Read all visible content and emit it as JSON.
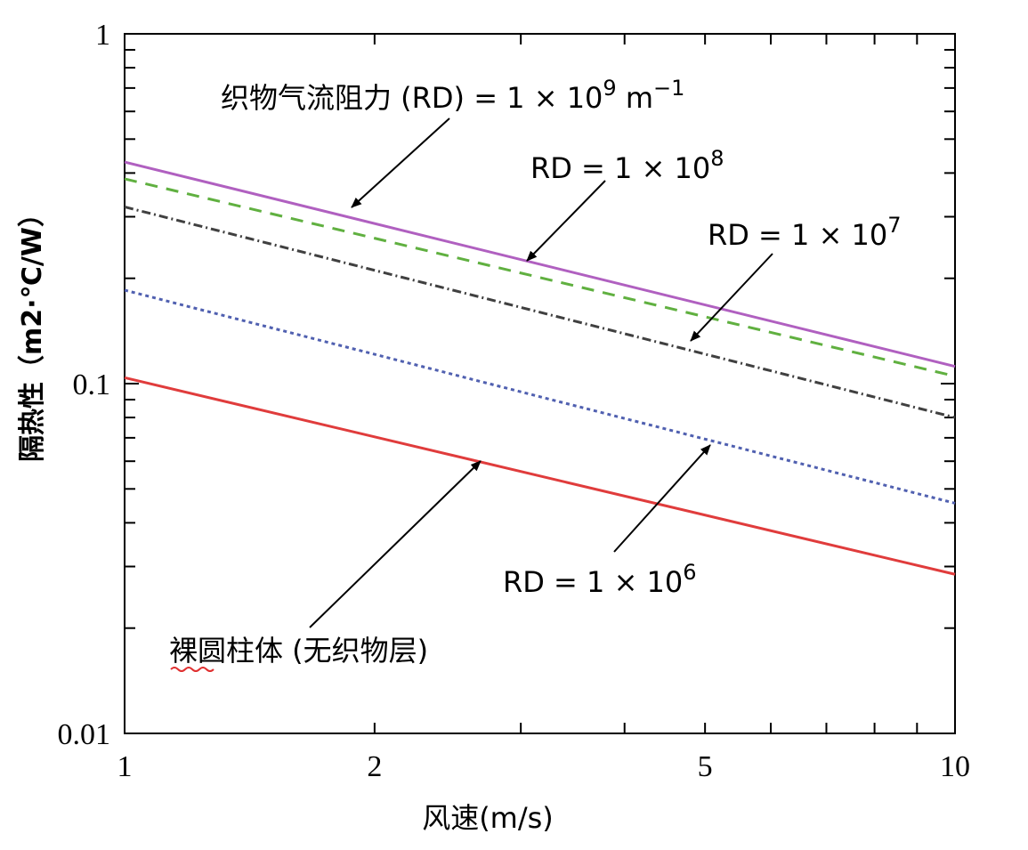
{
  "chart_data": {
    "type": "line",
    "title": "",
    "xlabel": "风速(m/s)",
    "ylabel": "隔热性（m2·℃/W）",
    "x_scale": "log",
    "y_scale": "log",
    "xlim": [
      1,
      10
    ],
    "ylim": [
      0.01,
      1
    ],
    "x_ticks": [
      "1",
      "2",
      "5",
      "10"
    ],
    "y_ticks": [
      "1",
      "0.1",
      "0.01"
    ],
    "grid": false,
    "series": [
      {
        "name": "织物气流阻力 (RD) = 1 × 10⁹ m⁻¹",
        "color": "#b060c0",
        "dash": "solid",
        "x": [
          1,
          10
        ],
        "values": [
          0.43,
          0.112
        ]
      },
      {
        "name": "RD = 1 × 10⁸",
        "color": "#60b040",
        "dash": "dashed",
        "x": [
          1,
          10
        ],
        "values": [
          0.385,
          0.105
        ]
      },
      {
        "name": "RD = 1 × 10⁷",
        "color": "#404040",
        "dash": "dashdot",
        "x": [
          1,
          10
        ],
        "values": [
          0.32,
          0.08
        ]
      },
      {
        "name": "RD = 1 × 10⁶",
        "color": "#5060b0",
        "dash": "dotted",
        "x": [
          1,
          10
        ],
        "values": [
          0.185,
          0.0455
        ]
      },
      {
        "name": "裸圆柱体 (无织物层)",
        "color": "#e03c3c",
        "dash": "solid",
        "x": [
          1,
          10
        ],
        "values": [
          0.104,
          0.0285
        ]
      }
    ],
    "annotations": [
      {
        "text_main": "织物气流阻力 (RD) = 1 × 10",
        "sup": "9",
        "tail": " m",
        "tail_sup": "−1",
        "series_index": 0
      },
      {
        "text_main": "RD = 1 × 10",
        "sup": "8",
        "series_index": 1
      },
      {
        "text_main": "RD = 1 × 10",
        "sup": "7",
        "series_index": 2
      },
      {
        "text_main": "RD = 1 × 10",
        "sup": "6",
        "series_index": 3
      },
      {
        "text_main": "裸圆柱体 (无织物层)",
        "series_index": 4
      }
    ]
  }
}
